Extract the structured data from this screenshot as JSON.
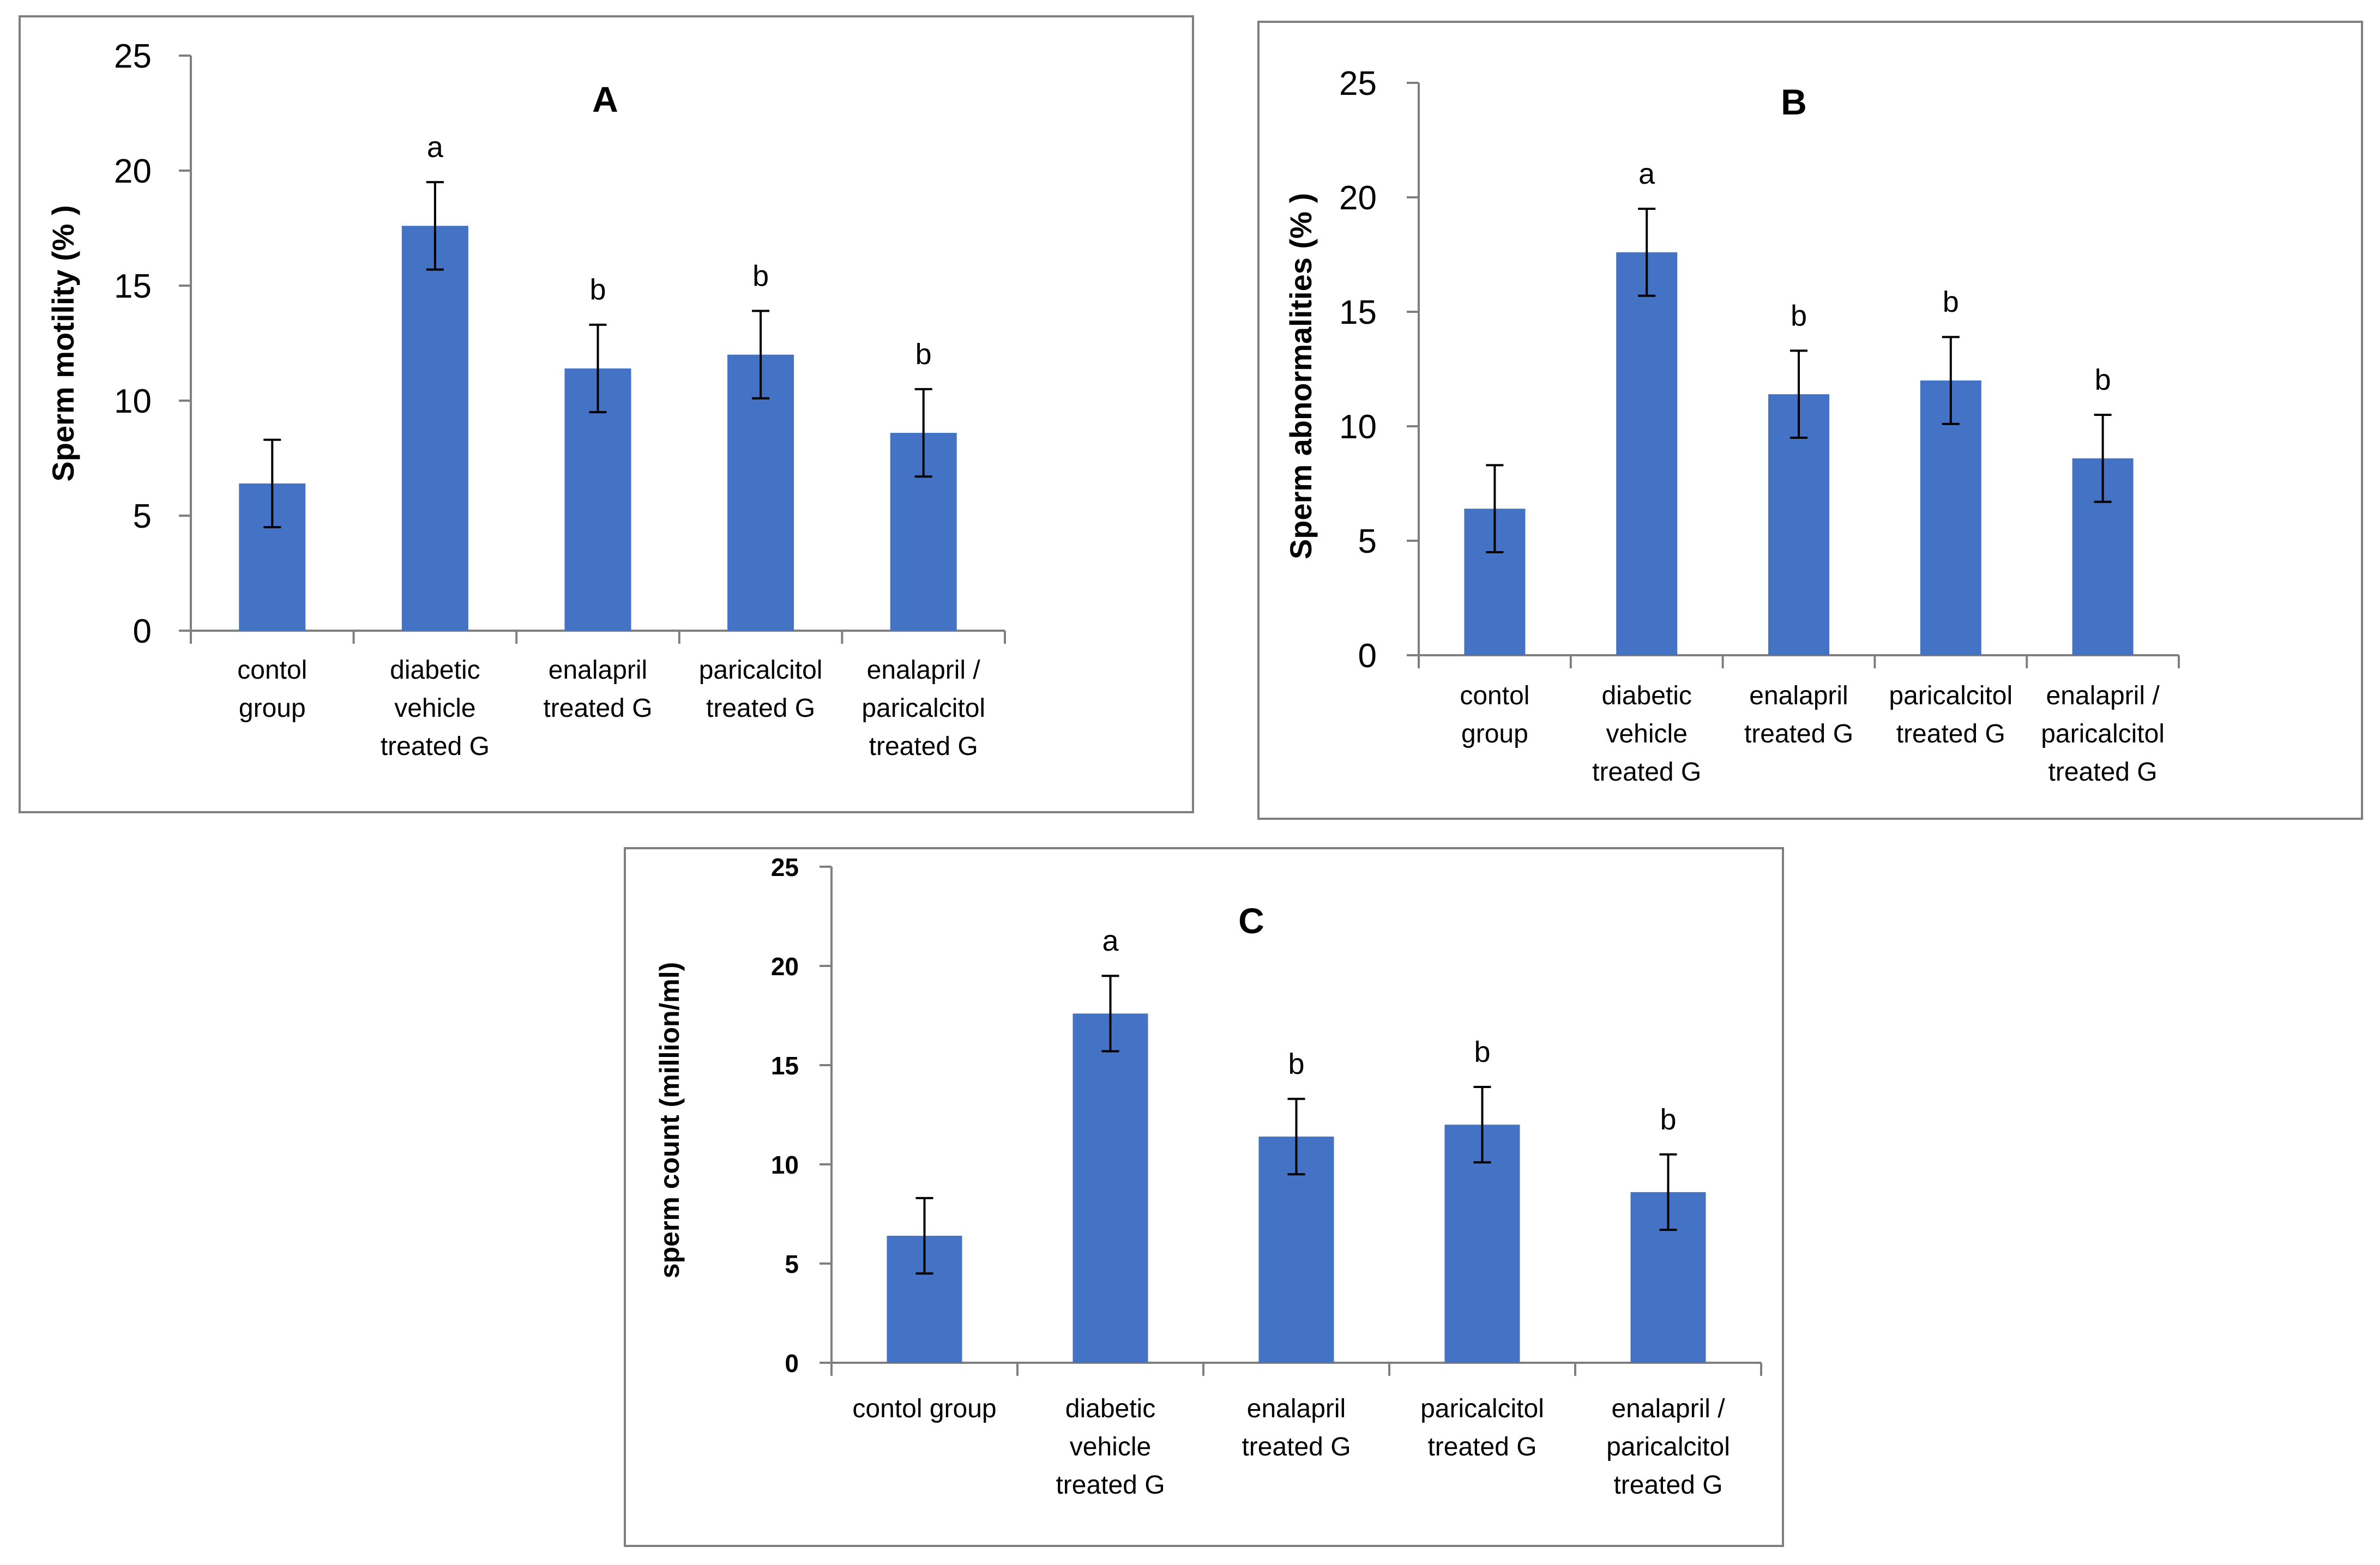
{
  "colors": {
    "bar": "#4472c4",
    "axis": "#7f7f7f",
    "frame": "#7f7f7f",
    "error": "#000000"
  },
  "chart_data": [
    {
      "type": "bar",
      "title": "A",
      "ylabel": "Sperm motility (% )",
      "xlabel": "",
      "ylim": [
        0,
        25
      ],
      "yticks": [
        0,
        5,
        10,
        15,
        20,
        25
      ],
      "categories": [
        [
          "contol",
          "group"
        ],
        [
          "diabetic",
          "vehicle",
          "treated G"
        ],
        [
          "enalapril",
          "treated G"
        ],
        [
          "paricalcitol",
          "treated G"
        ],
        [
          "enalapril /",
          "paricalcitol",
          "treated G"
        ]
      ],
      "values": [
        6.4,
        17.6,
        11.4,
        12.0,
        8.6
      ],
      "errors": [
        1.9,
        1.9,
        1.9,
        1.9,
        1.9
      ],
      "significance": [
        "",
        "a",
        "b",
        "b",
        "b"
      ]
    },
    {
      "type": "bar",
      "title": "B",
      "ylabel": "Sperm abnormalities  (% )",
      "xlabel": "",
      "ylim": [
        0,
        25
      ],
      "yticks": [
        0,
        5,
        10,
        15,
        20,
        25
      ],
      "categories": [
        [
          "contol",
          "group"
        ],
        [
          "diabetic",
          "vehicle",
          "treated G"
        ],
        [
          "enalapril",
          "treated G"
        ],
        [
          "paricalcitol",
          "treated G"
        ],
        [
          "enalapril /",
          "paricalcitol",
          "treated G"
        ]
      ],
      "values": [
        6.4,
        17.6,
        11.4,
        12.0,
        8.6
      ],
      "errors": [
        1.9,
        1.9,
        1.9,
        1.9,
        1.9
      ],
      "significance": [
        "",
        "a",
        "b",
        "b",
        "b"
      ]
    },
    {
      "type": "bar",
      "title": "C",
      "ylabel": "sperm count (million/ml)",
      "xlabel": "",
      "ylim": [
        0,
        25
      ],
      "yticks": [
        0,
        5,
        10,
        15,
        20,
        25
      ],
      "categories": [
        [
          "contol group"
        ],
        [
          "diabetic",
          "vehicle",
          "treated G"
        ],
        [
          "enalapril",
          "treated G"
        ],
        [
          "paricalcitol",
          "treated G"
        ],
        [
          "enalapril /",
          "paricalcitol",
          "treated G"
        ]
      ],
      "values": [
        6.4,
        17.6,
        11.4,
        12.0,
        8.6
      ],
      "errors": [
        1.9,
        1.9,
        1.9,
        1.9,
        1.9
      ],
      "significance": [
        "",
        "a",
        "b",
        "b",
        "b"
      ]
    }
  ]
}
